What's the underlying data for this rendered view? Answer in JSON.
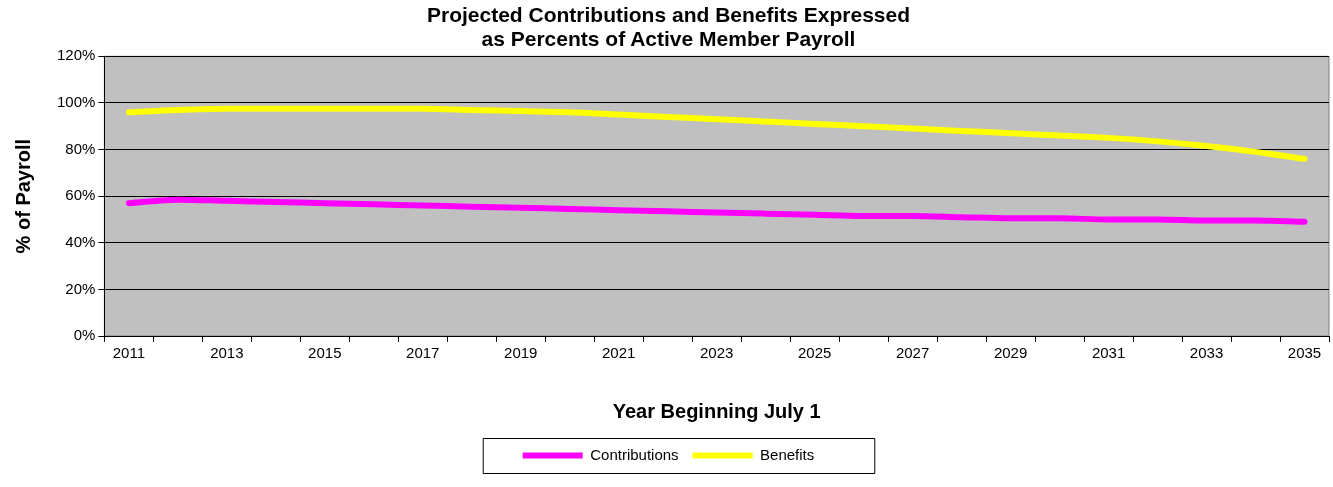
{
  "chart_data": {
    "type": "line",
    "title": [
      "Projected Contributions and Benefits Expressed",
      "as Percents of Active Member Payroll"
    ],
    "xlabel": "Year Beginning July 1",
    "ylabel": "% of Payroll",
    "categories": [
      "2011",
      null,
      "2013",
      null,
      "2015",
      null,
      "2017",
      null,
      "2019",
      null,
      "2021",
      null,
      "2023",
      null,
      "2025",
      null,
      "2027",
      null,
      "2029",
      null,
      "2031",
      null,
      "2033",
      null,
      "2035"
    ],
    "series": [
      {
        "name": "Contributions",
        "color": "#ff00ff",
        "values": [
          57,
          58.5,
          58,
          57.5,
          57,
          56.5,
          56,
          55.5,
          55,
          54.5,
          54,
          53.5,
          53,
          52.5,
          52,
          51.5,
          51.5,
          51,
          50.5,
          50.5,
          50,
          50,
          49.5,
          49.5,
          49
        ]
      },
      {
        "name": "Benefits",
        "color": "#ffff00",
        "values": [
          96,
          97,
          97.5,
          97.5,
          97.5,
          97.5,
          97.5,
          97,
          96.5,
          96,
          95,
          94,
          93,
          92,
          91,
          90,
          89,
          88,
          87,
          86,
          85,
          83.5,
          81.5,
          79,
          76
        ]
      }
    ],
    "ylim": [
      0,
      120
    ],
    "yticks": [
      {
        "value": 0,
        "label": "0%"
      },
      {
        "value": 20,
        "label": "20%"
      },
      {
        "value": 40,
        "label": "40%"
      },
      {
        "value": 60,
        "label": "60%"
      },
      {
        "value": 80,
        "label": "80%"
      },
      {
        "value": 100,
        "label": "100%"
      },
      {
        "value": 120,
        "label": "120%"
      }
    ],
    "grid": "y",
    "legend": "bottom",
    "marker": "none",
    "line_style": "solid"
  }
}
